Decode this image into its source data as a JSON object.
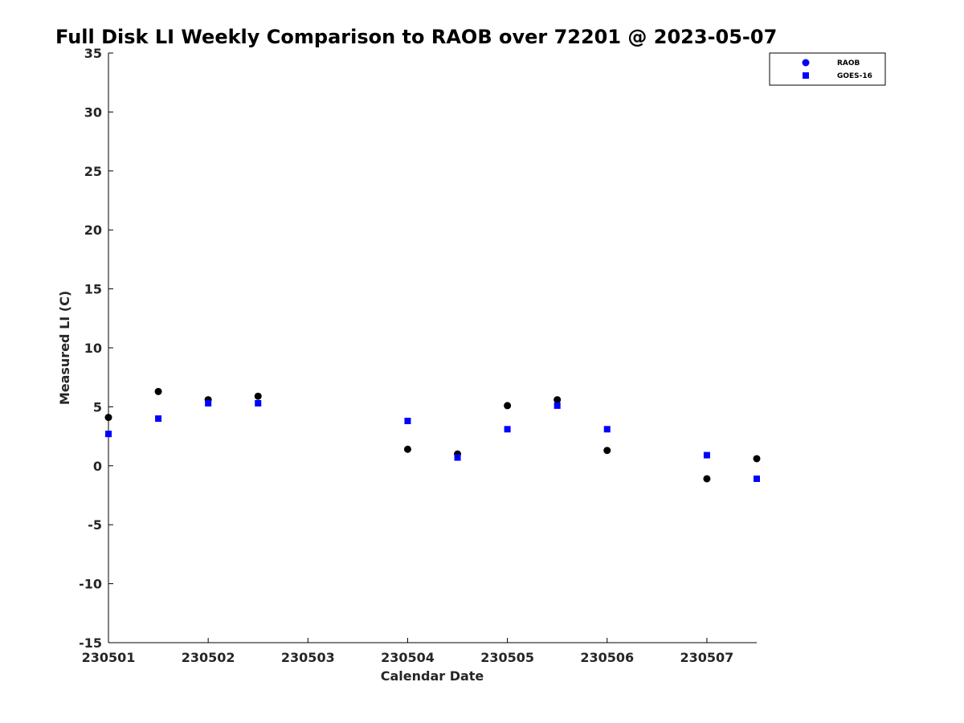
{
  "chart_data": {
    "type": "scatter",
    "title": "Full Disk LI Weekly Comparison to RAOB over 72201 @ 2023-05-07",
    "xlabel": "Calendar Date",
    "ylabel": "Measured LI (C)",
    "xlim": [
      0,
      6.5
    ],
    "ylim": [
      -15,
      35
    ],
    "x_ticks": [
      0,
      1,
      2,
      3,
      4,
      5,
      6
    ],
    "x_tick_labels": [
      "230501",
      "230502",
      "230503",
      "230504",
      "230505",
      "230506",
      "230507"
    ],
    "y_ticks": [
      -15,
      -10,
      -5,
      0,
      5,
      10,
      15,
      20,
      25,
      30,
      35
    ],
    "y_tick_labels": [
      "-15",
      "-10",
      "-5",
      "0",
      "5",
      "10",
      "15",
      "20",
      "25",
      "30",
      "35"
    ],
    "grid": false,
    "legend_position": "top-right",
    "series": [
      {
        "name": "RAOB",
        "marker": "circle",
        "color": "#000000",
        "legend_color": "#0000ff",
        "x": [
          0,
          0.5,
          1,
          1.5,
          3,
          3.5,
          4,
          4.5,
          5,
          6,
          6.5
        ],
        "y": [
          4.1,
          6.3,
          5.6,
          5.9,
          1.4,
          1.0,
          5.1,
          5.6,
          1.3,
          -1.1,
          0.6
        ]
      },
      {
        "name": "GOES-16",
        "marker": "square",
        "color": "#0000ff",
        "x": [
          0,
          0.5,
          1,
          1.5,
          3,
          3.5,
          4,
          4.5,
          5,
          6,
          6.5
        ],
        "y": [
          2.7,
          4.0,
          5.3,
          5.3,
          3.8,
          0.7,
          3.1,
          5.1,
          3.1,
          0.9,
          -1.1
        ]
      }
    ]
  }
}
